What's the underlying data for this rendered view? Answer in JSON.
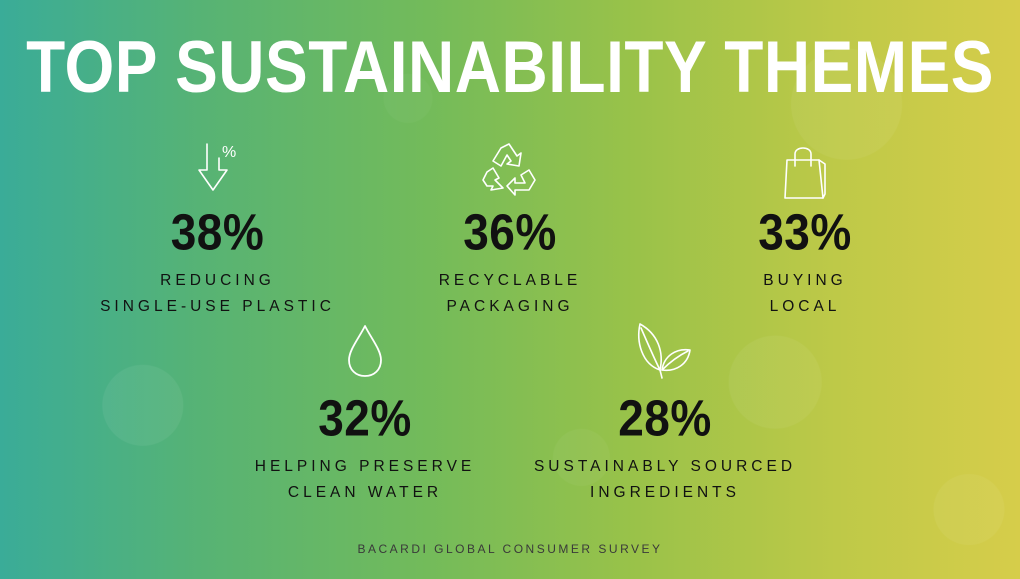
{
  "title": "TOP SUSTAINABILITY THEMES",
  "stats": [
    {
      "value": "38%",
      "label_lines": [
        "REDUCING",
        "SINGLE-USE PLASTIC"
      ],
      "icon": "percent-down-arrow-icon"
    },
    {
      "value": "36%",
      "label_lines": [
        "RECYCLABLE",
        "PACKAGING"
      ],
      "icon": "recycle-icon"
    },
    {
      "value": "33%",
      "label_lines": [
        "BUYING",
        "LOCAL"
      ],
      "icon": "shopping-bag-icon"
    },
    {
      "value": "32%",
      "label_lines": [
        "HELPING PRESERVE",
        "CLEAN WATER"
      ],
      "icon": "water-drop-icon"
    },
    {
      "value": "28%",
      "label_lines": [
        "SUSTAINABLY SOURCED",
        "INGREDIENTS"
      ],
      "icon": "leaves-icon"
    }
  ],
  "footer": "BACARDI GLOBAL CONSUMER SURVEY",
  "colors": {
    "gradient_start": "#3aac98",
    "gradient_end": "#d6cd4a",
    "title": "#ffffff",
    "text": "#111111"
  }
}
